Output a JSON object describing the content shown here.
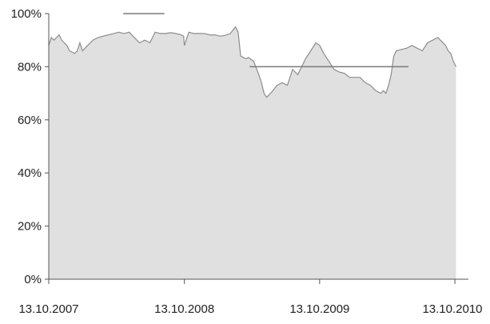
{
  "chart_data": {
    "type": "area",
    "title": "",
    "xlabel": "",
    "ylabel": "",
    "ylim": [
      0,
      100
    ],
    "y_ticks": [
      0,
      20,
      40,
      60,
      80,
      100
    ],
    "y_tick_labels": [
      "0%",
      "20%",
      "40%",
      "60%",
      "80%",
      "100%"
    ],
    "x_ticks": [
      "2007-10-13",
      "2008-10-13",
      "2009-10-13",
      "2010-10-13"
    ],
    "x_tick_labels": [
      "13.10.2007",
      "13.10.2008",
      "13.10.2009",
      "13.10.2010"
    ],
    "grid": false,
    "legend": "none",
    "fill_color": "#e0e0e0",
    "line_color": "#8c8c8c",
    "axis_color": "#555555",
    "series": [
      {
        "x": [
          "2007-10-13",
          "2007-10-20",
          "2007-10-27",
          "2007-11-03",
          "2007-11-10",
          "2007-11-17",
          "2007-11-24",
          "2007-12-01",
          "2007-12-08",
          "2007-12-15",
          "2007-12-22",
          "2007-12-29",
          "2008-01-05",
          "2008-01-12",
          "2008-01-19",
          "2008-01-26",
          "2008-02-09",
          "2008-02-23",
          "2008-03-08",
          "2008-03-22",
          "2008-04-05",
          "2008-04-19",
          "2008-05-03",
          "2008-05-17",
          "2008-05-31",
          "2008-06-14",
          "2008-06-28",
          "2008-07-12",
          "2008-07-26",
          "2008-08-09",
          "2008-08-23",
          "2008-09-06",
          "2008-09-20",
          "2008-10-04",
          "2008-10-11",
          "2008-10-13",
          "2008-10-25",
          "2008-11-08",
          "2008-11-22",
          "2008-12-06",
          "2008-12-20",
          "2009-01-03",
          "2009-01-17",
          "2009-01-31",
          "2009-02-14",
          "2009-02-28",
          "2009-03-07",
          "2009-03-14",
          "2009-03-21",
          "2009-03-28",
          "2009-04-04",
          "2009-04-18",
          "2009-05-02",
          "2009-05-09",
          "2009-05-16",
          "2009-05-23",
          "2009-05-30",
          "2009-06-06",
          "2009-06-20",
          "2009-07-04",
          "2009-07-18",
          "2009-07-25",
          "2009-08-01",
          "2009-08-15",
          "2009-08-29",
          "2009-09-05",
          "2009-09-19",
          "2009-10-03",
          "2009-10-13",
          "2009-10-24",
          "2009-11-07",
          "2009-11-21",
          "2009-12-05",
          "2009-12-19",
          "2010-01-02",
          "2010-01-16",
          "2010-01-30",
          "2010-02-13",
          "2010-02-27",
          "2010-03-13",
          "2010-03-27",
          "2010-04-03",
          "2010-04-10",
          "2010-04-17",
          "2010-04-24",
          "2010-05-01",
          "2010-05-08",
          "2010-05-22",
          "2010-06-05",
          "2010-06-19",
          "2010-07-03",
          "2010-07-17",
          "2010-07-31",
          "2010-08-14",
          "2010-08-28",
          "2010-09-04",
          "2010-09-18",
          "2010-09-25",
          "2010-10-02",
          "2010-10-09",
          "2010-10-16"
        ],
        "y": [
          88,
          91,
          90,
          91,
          92,
          90,
          89,
          88,
          86,
          85.5,
          85,
          86,
          89,
          86,
          87,
          88,
          90,
          91,
          91.5,
          92,
          92.5,
          93,
          92.5,
          93,
          91,
          89,
          90,
          89,
          93,
          92.5,
          92.5,
          92.8,
          92.5,
          92,
          91.5,
          88,
          93,
          92.5,
          92.5,
          92.5,
          92,
          92,
          91.5,
          91.8,
          92.5,
          95,
          93,
          84,
          83.5,
          83,
          83.5,
          82,
          77,
          74,
          70,
          68.5,
          69.5,
          70.5,
          73,
          74,
          73,
          76,
          79,
          77,
          81,
          83,
          86,
          89,
          88,
          85,
          82,
          79,
          78,
          77.5,
          76,
          76,
          76,
          74,
          73,
          71,
          70,
          71,
          70,
          73,
          77,
          84,
          86,
          86.5,
          87,
          88,
          87,
          86,
          89,
          90,
          91,
          90,
          88,
          86,
          85,
          82,
          80
        ]
      }
    ],
    "reference_lines": [
      {
        "from": "2008-05-01",
        "to": "2008-08-20",
        "y": 100
      },
      {
        "from": "2009-04-07",
        "to": "2010-06-10",
        "y": 80
      }
    ]
  }
}
